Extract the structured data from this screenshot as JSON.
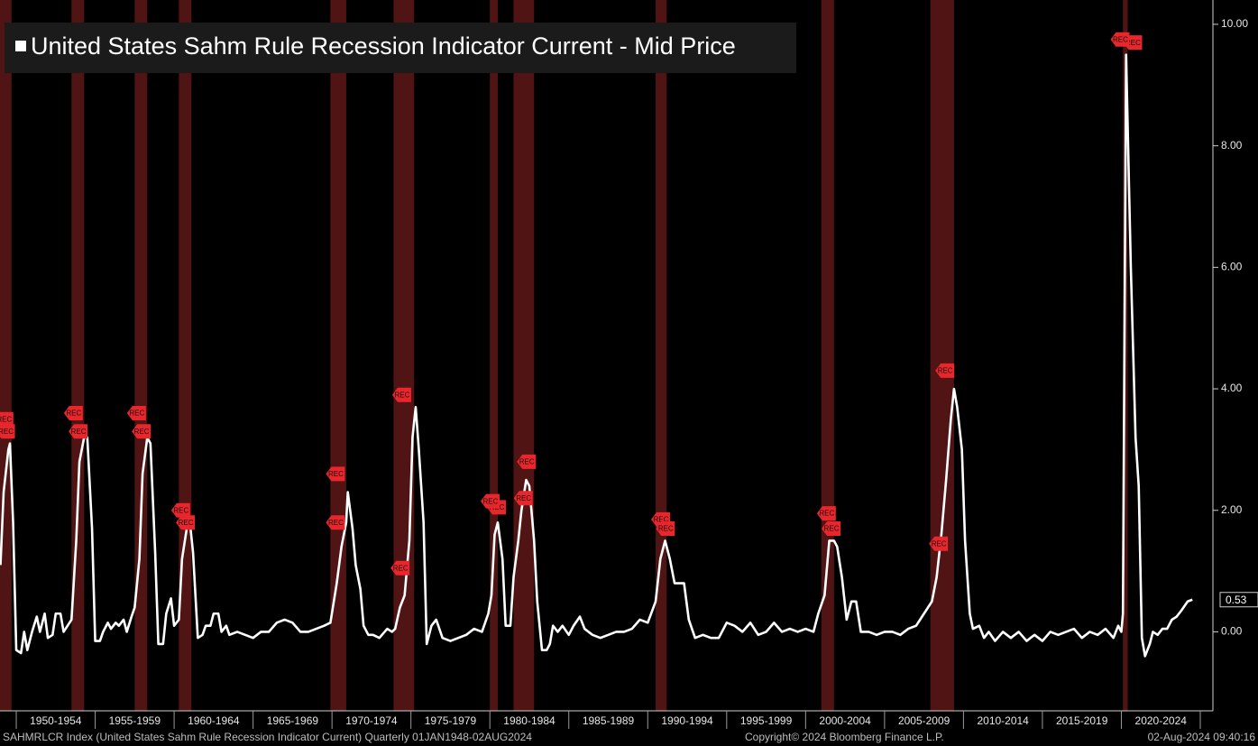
{
  "chart_data": {
    "type": "line",
    "legend": "United States Sahm Rule Recession Indicator Current - Mid Price",
    "footer_left": "SAHMRLCR Index (United States Sahm Rule Recession Indicator Current)  Quarterly 01JAN1948-02AUG2024",
    "footer_center": "Copyright© 2024 Bloomberg Finance L.P.",
    "footer_right": "02-Aug-2024 09:40:16",
    "xlim": [
      1948.97,
      2025.8
    ],
    "ylim": [
      -1.3,
      10.4
    ],
    "yticks": [
      {
        "value": 0,
        "label": "0.00"
      },
      {
        "value": 2,
        "label": "2.00"
      },
      {
        "value": 4,
        "label": "4.00"
      },
      {
        "value": 6,
        "label": "6.00"
      },
      {
        "value": 8,
        "label": "8.00"
      },
      {
        "value": 10,
        "label": "10.00"
      }
    ],
    "xticks": [
      1950,
      1955,
      1960,
      1965,
      1970,
      1975,
      1980,
      1985,
      1990,
      1995,
      2000,
      2005,
      2010,
      2015,
      2020,
      2025
    ],
    "x_period_labels": [
      "1950-1954",
      "1955-1959",
      "1960-1964",
      "1965-1969",
      "1970-1974",
      "1975-1979",
      "1980-1984",
      "1985-1989",
      "1990-1994",
      "1995-1999",
      "2000-2004",
      "2005-2009",
      "2010-2014",
      "2015-2019",
      "2020-2024"
    ],
    "recessions": [
      [
        1948.9,
        1949.7
      ],
      [
        1953.5,
        1954.3
      ],
      [
        1957.5,
        1958.3
      ],
      [
        1960.3,
        1961.1
      ],
      [
        1969.9,
        1970.9
      ],
      [
        1973.9,
        1975.2
      ],
      [
        1980.0,
        1980.5
      ],
      [
        1981.5,
        1982.8
      ],
      [
        1990.5,
        1991.2
      ],
      [
        2001.0,
        2001.8
      ],
      [
        2007.9,
        2009.4
      ],
      [
        2020.1,
        2020.4
      ]
    ],
    "recession_color": "#5a1616",
    "annotations": [
      {
        "x": 1949.3,
        "y": 3.5,
        "label": "REC"
      },
      {
        "x": 1949.4,
        "y": 3.3,
        "label": "REC"
      },
      {
        "x": 1953.7,
        "y": 3.6,
        "label": "REC"
      },
      {
        "x": 1954.0,
        "y": 3.3,
        "label": "REC"
      },
      {
        "x": 1957.7,
        "y": 3.6,
        "label": "REC"
      },
      {
        "x": 1958.0,
        "y": 3.3,
        "label": "REC"
      },
      {
        "x": 1960.5,
        "y": 2.0,
        "label": "REC"
      },
      {
        "x": 1960.8,
        "y": 1.8,
        "label": "REC"
      },
      {
        "x": 1970.3,
        "y": 2.6,
        "label": "REC"
      },
      {
        "x": 1970.3,
        "y": 1.8,
        "label": "REC"
      },
      {
        "x": 1974.5,
        "y": 3.9,
        "label": "REC"
      },
      {
        "x": 1974.4,
        "y": 1.05,
        "label": "REC"
      },
      {
        "x": 1980.5,
        "y": 2.05,
        "label": "REC"
      },
      {
        "x": 1980.1,
        "y": 2.15,
        "label": "REC"
      },
      {
        "x": 1982.2,
        "y": 2.2,
        "label": "REC"
      },
      {
        "x": 1982.4,
        "y": 2.8,
        "label": "REC"
      },
      {
        "x": 1990.9,
        "y": 1.85,
        "label": "REC"
      },
      {
        "x": 1991.2,
        "y": 1.7,
        "label": "REC"
      },
      {
        "x": 2001.4,
        "y": 1.95,
        "label": "REC"
      },
      {
        "x": 2001.7,
        "y": 1.7,
        "label": "REC"
      },
      {
        "x": 2008.9,
        "y": 4.3,
        "label": "REC"
      },
      {
        "x": 2008.5,
        "y": 1.45,
        "label": "REC"
      },
      {
        "x": 2020.8,
        "y": 9.7,
        "label": "REC"
      },
      {
        "x": 2020.0,
        "y": 9.75,
        "label": "REC"
      }
    ],
    "annotation_color": "#e8262b",
    "x": [
      1949.0,
      1949.2,
      1949.5,
      1949.6,
      1949.8,
      1950.0,
      1950.3,
      1950.5,
      1950.7,
      1951.0,
      1951.3,
      1951.5,
      1951.8,
      1952.0,
      1952.3,
      1952.5,
      1952.8,
      1953.0,
      1953.5,
      1953.8,
      1954.0,
      1954.3,
      1954.5,
      1954.8,
      1955.0,
      1955.3,
      1955.5,
      1955.8,
      1956.0,
      1956.3,
      1956.5,
      1956.8,
      1957.0,
      1957.3,
      1957.5,
      1957.8,
      1958.0,
      1958.3,
      1958.5,
      1958.8,
      1959.0,
      1959.3,
      1959.5,
      1959.8,
      1960.0,
      1960.3,
      1960.5,
      1960.8,
      1961.0,
      1961.2,
      1961.5,
      1961.8,
      1962.0,
      1962.3,
      1962.5,
      1962.8,
      1963.0,
      1963.3,
      1963.5,
      1964.0,
      1964.5,
      1965.0,
      1965.5,
      1966.0,
      1966.5,
      1967.0,
      1967.5,
      1968.0,
      1968.5,
      1969.0,
      1969.5,
      1969.9,
      1970.3,
      1970.6,
      1970.9,
      1971.0,
      1971.3,
      1971.5,
      1971.8,
      1972.0,
      1972.3,
      1972.6,
      1973.0,
      1973.5,
      1973.8,
      1974.0,
      1974.3,
      1974.6,
      1974.9,
      1975.1,
      1975.3,
      1975.5,
      1975.8,
      1976.0,
      1976.3,
      1976.6,
      1977.0,
      1977.5,
      1978.0,
      1978.5,
      1979.0,
      1979.5,
      1979.9,
      1980.1,
      1980.3,
      1980.5,
      1980.8,
      1981.0,
      1981.3,
      1981.5,
      1981.8,
      1982.0,
      1982.3,
      1982.5,
      1982.8,
      1983.0,
      1983.3,
      1983.6,
      1983.8,
      1984.0,
      1984.3,
      1984.6,
      1985.0,
      1985.3,
      1985.7,
      1986.0,
      1986.5,
      1987.0,
      1987.5,
      1988.0,
      1988.5,
      1989.0,
      1989.5,
      1990.0,
      1990.5,
      1990.8,
      1991.1,
      1991.4,
      1991.7,
      1992.3,
      1992.6,
      1993.0,
      1993.5,
      1994.0,
      1994.5,
      1995.0,
      1995.5,
      1996.0,
      1996.5,
      1997.0,
      1997.5,
      1998.0,
      1998.5,
      1999.0,
      1999.5,
      2000.0,
      2000.5,
      2000.8,
      2001.2,
      2001.5,
      2001.8,
      2002.0,
      2002.3,
      2002.6,
      2002.9,
      2003.2,
      2003.5,
      2004.0,
      2004.5,
      2005.0,
      2005.5,
      2006.0,
      2006.5,
      2007.0,
      2007.5,
      2008.0,
      2008.3,
      2008.6,
      2008.9,
      2009.2,
      2009.4,
      2009.6,
      2009.9,
      2010.1,
      2010.4,
      2010.6,
      2011.0,
      2011.3,
      2011.6,
      2012.0,
      2012.5,
      2013.0,
      2013.5,
      2014.0,
      2014.5,
      2015.0,
      2015.5,
      2016.0,
      2016.5,
      2017.0,
      2017.5,
      2018.0,
      2018.5,
      2019.0,
      2019.5,
      2019.8,
      2020.0,
      2020.1,
      2020.3,
      2020.6,
      2020.9,
      2021.1,
      2021.3,
      2021.5,
      2021.8,
      2022.0,
      2022.3,
      2022.6,
      2022.9,
      2023.2,
      2023.5,
      2023.8,
      2024.2,
      2024.5
    ],
    "series": [
      {
        "name": "United States Sahm Rule Recession Indicator Current - Mid Price",
        "color": "#ffffff",
        "values": [
          1.1,
          2.3,
          3.0,
          3.1,
          1.8,
          -0.3,
          -0.35,
          0,
          -0.3,
          0,
          0.25,
          0,
          0.3,
          -0.1,
          -0.05,
          0.3,
          0.3,
          0,
          0.2,
          1.5,
          2.8,
          3.2,
          3.2,
          1.7,
          -0.15,
          -0.15,
          0,
          0.15,
          0.05,
          0.15,
          0.1,
          0.2,
          0,
          0.25,
          0.4,
          1.2,
          2.6,
          3.2,
          3.1,
          1.3,
          -0.2,
          -0.2,
          0.3,
          0.55,
          0.1,
          0.2,
          1.2,
          1.7,
          1.8,
          1.3,
          -0.1,
          -0.05,
          0.1,
          0.1,
          0.3,
          0.3,
          0,
          0.1,
          -0.05,
          0,
          -0.05,
          -0.1,
          0,
          0,
          0.15,
          0.2,
          0.15,
          0,
          0,
          0.05,
          0.1,
          0.15,
          0.8,
          1.4,
          1.8,
          2.3,
          1.7,
          1.1,
          0.7,
          0.1,
          -0.05,
          -0.05,
          -0.1,
          0.05,
          0,
          0.05,
          0.4,
          0.6,
          1.5,
          3.2,
          3.7,
          3.0,
          1.8,
          -0.2,
          0.1,
          0.2,
          -0.1,
          -0.15,
          -0.1,
          -0.05,
          0.05,
          0,
          0.3,
          0.6,
          1.6,
          1.8,
          1.2,
          0.1,
          0.1,
          0.9,
          1.5,
          2.0,
          2.5,
          2.4,
          1.5,
          0.5,
          -0.3,
          -0.3,
          -0.2,
          0.1,
          0,
          0.1,
          -0.05,
          0.1,
          0.25,
          0.05,
          -0.05,
          -0.1,
          -0.05,
          0,
          0,
          0.05,
          0.2,
          0.15,
          0.5,
          1.2,
          1.5,
          1.2,
          0.8,
          0.8,
          0.2,
          -0.1,
          -0.05,
          -0.1,
          -0.1,
          0.15,
          0.1,
          0,
          0.15,
          -0.05,
          0,
          0.15,
          0,
          0.05,
          0,
          0.05,
          0,
          0.3,
          0.6,
          1.5,
          1.5,
          1.4,
          0.9,
          0.2,
          0.5,
          0.5,
          0,
          0,
          -0.05,
          0,
          0,
          -0.05,
          0.05,
          0.1,
          0.3,
          0.5,
          0.9,
          1.6,
          2.5,
          3.5,
          4.0,
          3.7,
          3.0,
          1.5,
          0.3,
          0.05,
          0.1,
          -0.1,
          0,
          -0.15,
          0,
          -0.1,
          0,
          -0.15,
          -0.05,
          -0.15,
          0,
          -0.05,
          0,
          0.05,
          -0.1,
          0,
          -0.05,
          0.05,
          -0.1,
          0.1,
          0,
          0.3,
          9.5,
          6.0,
          3.2,
          2.4,
          -0.1,
          -0.4,
          -0.2,
          0,
          -0.05,
          0.05,
          0.05,
          0.2,
          0.25,
          0.35,
          0.5,
          0.53
        ]
      }
    ]
  }
}
